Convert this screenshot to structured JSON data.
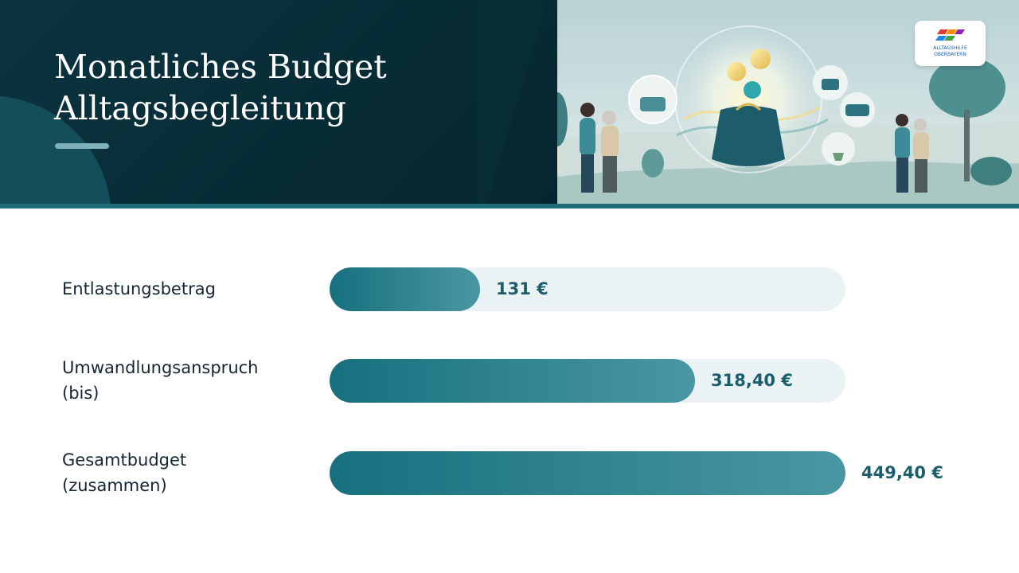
{
  "header": {
    "title": "Monatliches Budget\nAlltagsbegleitung",
    "logo_text": [
      "ALLTAGSHILFE",
      "OBERBAYERN"
    ]
  },
  "chart_data": {
    "type": "bar",
    "orientation": "horizontal",
    "title": "Monatliches Budget Alltagsbegleitung",
    "categories": [
      "Entlastungsbetrag",
      "Umwandlungsanspruch\n(bis)",
      "Gesamtbudget\n(zusammen)"
    ],
    "values": [
      131,
      318.4,
      449.4
    ],
    "value_labels": [
      "131 €",
      "318,40 €",
      "449,40 €"
    ],
    "xlim": [
      0,
      449.4
    ],
    "grid": false,
    "legend": "none",
    "colors": {
      "bar_start": "#17707e",
      "bar_end": "#4a97a3",
      "track": "#eaf2f4",
      "value_text": "#1a5e6c"
    }
  }
}
